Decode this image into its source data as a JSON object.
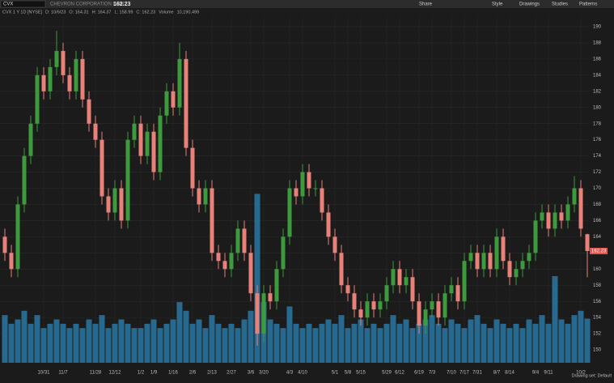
{
  "toolbar": {
    "symbol": "CVX",
    "company": "CHEVRON CORPORATION COM",
    "price": "162.23",
    "buttons": [
      "Share",
      "Style",
      "Drawings",
      "Studies",
      "Patterns"
    ]
  },
  "info": [
    "CVX 1 Y 1D [NYSE]",
    "D: 10/6/23",
    "O: 164.31",
    "H: 164.37",
    "L: 158.99",
    "C: 162.23",
    "Volume",
    "10,190,499"
  ],
  "footer": "Drawing set: Default",
  "chart_data": {
    "type": "candlestick",
    "categories": [
      null,
      null,
      null,
      null,
      null,
      null,
      "10/31",
      null,
      null,
      "11/7",
      null,
      null,
      null,
      null,
      "11/28",
      null,
      null,
      "12/12",
      null,
      null,
      null,
      "1/2",
      null,
      "1/9",
      null,
      null,
      "1/16",
      null,
      null,
      "2/6",
      null,
      null,
      "2/13",
      null,
      null,
      "2/27",
      null,
      null,
      "3/6",
      null,
      "3/20",
      null,
      null,
      null,
      "4/3",
      null,
      "4/10",
      null,
      null,
      null,
      null,
      "5/1",
      null,
      "5/8",
      null,
      "5/15",
      null,
      null,
      null,
      "5/29",
      null,
      "6/12",
      null,
      null,
      "6/19",
      null,
      "7/3",
      null,
      null,
      "7/10",
      null,
      "7/17",
      null,
      "7/31",
      null,
      null,
      "8/7",
      null,
      "8/14",
      null,
      null,
      null,
      "9/4",
      null,
      "9/11",
      null,
      null,
      null,
      null,
      "10/2",
      null
    ],
    "open": [
      164,
      162,
      160,
      168,
      174,
      178,
      184,
      182,
      185,
      187,
      184,
      182,
      186,
      181,
      178,
      176,
      169,
      167,
      170,
      166,
      176,
      178,
      174,
      177,
      172,
      179,
      182,
      180,
      186,
      175,
      170,
      168,
      170,
      162,
      161,
      160,
      162,
      165,
      162,
      157,
      152,
      157,
      156,
      160,
      164,
      170,
      169,
      172,
      170,
      170,
      167,
      164,
      162,
      158,
      157,
      155,
      154,
      156,
      155,
      156,
      158,
      160,
      158,
      159,
      156,
      153,
      155,
      156,
      154,
      157,
      158,
      156,
      161,
      162,
      160,
      162,
      160,
      164,
      161,
      159,
      160,
      161,
      162,
      166,
      167,
      165,
      167,
      166,
      168,
      170,
      164.31
    ],
    "high": [
      165,
      163,
      169,
      175,
      179,
      185,
      185,
      186,
      189.5,
      188,
      185,
      187,
      187,
      182,
      179,
      177,
      170,
      171,
      171,
      177,
      179,
      179,
      178,
      178,
      180,
      183,
      183,
      188,
      187,
      176,
      171,
      171,
      171,
      163,
      162,
      163,
      166,
      166,
      163,
      158,
      158,
      158,
      161,
      165,
      171,
      171,
      173,
      173,
      171,
      171,
      168,
      165,
      163,
      159,
      158,
      156,
      157,
      157,
      157,
      159,
      161,
      161,
      160,
      160,
      157,
      156,
      157,
      157,
      158,
      159,
      159,
      162,
      163,
      163,
      163,
      163,
      165,
      165,
      162,
      161,
      162,
      163,
      167,
      168,
      168,
      168,
      168,
      169,
      171.5,
      171,
      164.37
    ],
    "low": [
      161,
      159,
      159,
      167,
      173,
      177,
      181,
      181,
      184,
      183,
      181,
      181,
      180,
      177,
      175,
      168,
      166,
      166,
      165,
      165,
      175,
      173,
      173,
      171,
      171,
      178,
      179,
      179,
      174,
      169,
      167,
      167,
      161,
      160,
      159,
      159,
      161,
      161,
      156,
      150.5,
      151,
      155,
      155,
      159,
      163,
      168,
      168,
      169,
      169,
      166,
      163,
      161,
      157,
      156,
      154,
      153,
      153,
      154,
      154,
      155,
      157,
      157,
      157,
      155,
      152,
      152,
      154,
      153,
      153,
      156,
      155,
      155,
      160,
      159,
      159,
      159,
      159,
      160,
      158,
      158,
      159,
      160,
      161,
      165,
      164,
      164,
      165,
      165,
      167,
      164,
      158.99
    ],
    "close": [
      162,
      160,
      168,
      174,
      178,
      184,
      182,
      185,
      187,
      184,
      182,
      186,
      181,
      178,
      176,
      169,
      167,
      170,
      166,
      176,
      178,
      174,
      177,
      172,
      179,
      182,
      180,
      186,
      175,
      170,
      168,
      170,
      162,
      161,
      160,
      162,
      165,
      162,
      157,
      152,
      157,
      156,
      160,
      164,
      170,
      169,
      172,
      170,
      170,
      167,
      164,
      162,
      158,
      157,
      155,
      154,
      156,
      155,
      156,
      158,
      160,
      158,
      159,
      156,
      153,
      155,
      156,
      154,
      157,
      158,
      156,
      161,
      162,
      160,
      162,
      160,
      164,
      161,
      159,
      160,
      161,
      162,
      166,
      167,
      165,
      167,
      166,
      168,
      170,
      165,
      162.23
    ],
    "volume": [
      11,
      9,
      10,
      12,
      9,
      11,
      8,
      9,
      10,
      9,
      8,
      9,
      8,
      10,
      9,
      11,
      8,
      9,
      10,
      9,
      8,
      8,
      9,
      10,
      8,
      9,
      10,
      14,
      12,
      9,
      10,
      8,
      11,
      9,
      8,
      9,
      8,
      10,
      12,
      39,
      14,
      10,
      9,
      8,
      13,
      9,
      8,
      9,
      8,
      9,
      10,
      9,
      11,
      8,
      9,
      10,
      8,
      9,
      8,
      9,
      11,
      9,
      10,
      8,
      9,
      10,
      11,
      9,
      8,
      10,
      9,
      8,
      10,
      11,
      9,
      8,
      10,
      9,
      8,
      9,
      8,
      10,
      9,
      11,
      9,
      20,
      10,
      9,
      11,
      12,
      10.190499
    ],
    "up_color": "#3d9a3d",
    "down_color": "#e8817a",
    "volume_color": "#28698f",
    "ylim": [
      148.4,
      191.3
    ],
    "yticks": [
      150,
      152,
      154,
      156,
      158,
      160,
      162,
      164,
      166,
      168,
      170,
      172,
      174,
      176,
      178,
      180,
      182,
      184,
      186,
      188,
      190
    ],
    "y2lim": [
      0,
      80
    ],
    "grid": true
  }
}
